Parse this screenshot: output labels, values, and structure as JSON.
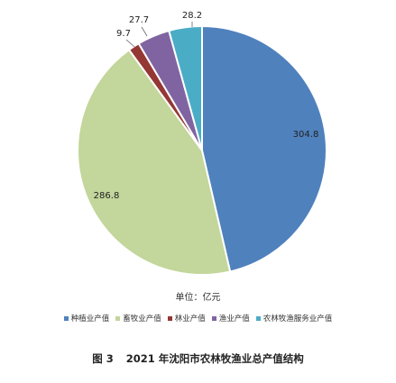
{
  "chart_data": {
    "type": "pie",
    "title": "2021 年沈阳市农林牧渔业总产值结构",
    "figure_label": "图 3",
    "unit_label": "单位：亿元",
    "slices": [
      {
        "label": "种植业产值",
        "value": 304.8,
        "display": "304.8",
        "color": "#4f81bd"
      },
      {
        "label": "畜牧业产值",
        "value": 286.8,
        "display": "286.8",
        "color": "#c3d69b"
      },
      {
        "label": "林业产值",
        "value": 9.7,
        "display": "9.7",
        "color": "#953735"
      },
      {
        "label": "渔业产值",
        "value": 27.7,
        "display": "27.7",
        "color": "#8064a2"
      },
      {
        "label": "农林牧渔服务业产值",
        "value": 28.2,
        "display": "28.2",
        "color": "#4bacc6"
      }
    ],
    "legend_position": "bottom"
  }
}
